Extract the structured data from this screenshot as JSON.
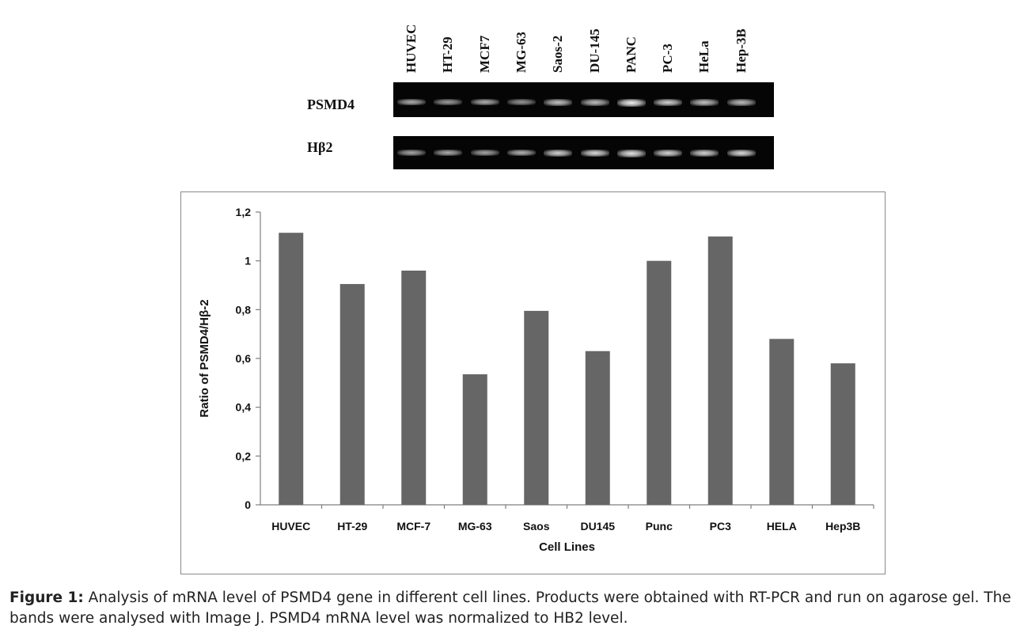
{
  "gel": {
    "lanes": [
      "HUVEC",
      "HT-29",
      "MCF7",
      "MG-63",
      "Saos-2",
      "DU-145",
      "PANC",
      "PC-3",
      "HeLa",
      "Hep-3B"
    ],
    "rows": [
      {
        "name": "PSMD4",
        "band_intensity": [
          0.55,
          0.45,
          0.55,
          0.4,
          0.7,
          0.65,
          1.0,
          0.8,
          0.7,
          0.65
        ]
      },
      {
        "name": "Hβ2",
        "band_intensity": [
          0.5,
          0.55,
          0.5,
          0.6,
          0.8,
          0.85,
          0.9,
          0.8,
          0.8,
          0.85
        ]
      }
    ]
  },
  "chart_data": {
    "type": "bar",
    "categories": [
      "HUVEC",
      "HT-29",
      "MCF-7",
      "MG-63",
      "Saos",
      "DU145",
      "Punc",
      "PC3",
      "HELA",
      "Hep3B"
    ],
    "values": [
      1.115,
      0.905,
      0.96,
      0.535,
      0.795,
      0.63,
      1.0,
      1.1,
      0.68,
      0.58
    ],
    "title": "",
    "xlabel": "Cell Lines",
    "ylabel": "Ratio of PSMD4/Hβ-2",
    "ylim": [
      0,
      1.2
    ],
    "yticks": [
      0,
      0.2,
      0.4,
      0.6,
      0.8,
      1,
      1.2
    ],
    "ytick_labels": [
      "0",
      "0,2",
      "0,4",
      "0,6",
      "0,8",
      "1",
      "1,2"
    ],
    "bar_color": "#666666",
    "grid": false,
    "legend": "none"
  },
  "caption": {
    "label": "Figure 1:",
    "text": " Analysis of mRNA level of PSMD4 gene in different cell lines. Products were obtained with RT-PCR and run on agarose gel. The bands were analysed with Image J. PSMD4 mRNA level was normalized to HB2 level."
  }
}
